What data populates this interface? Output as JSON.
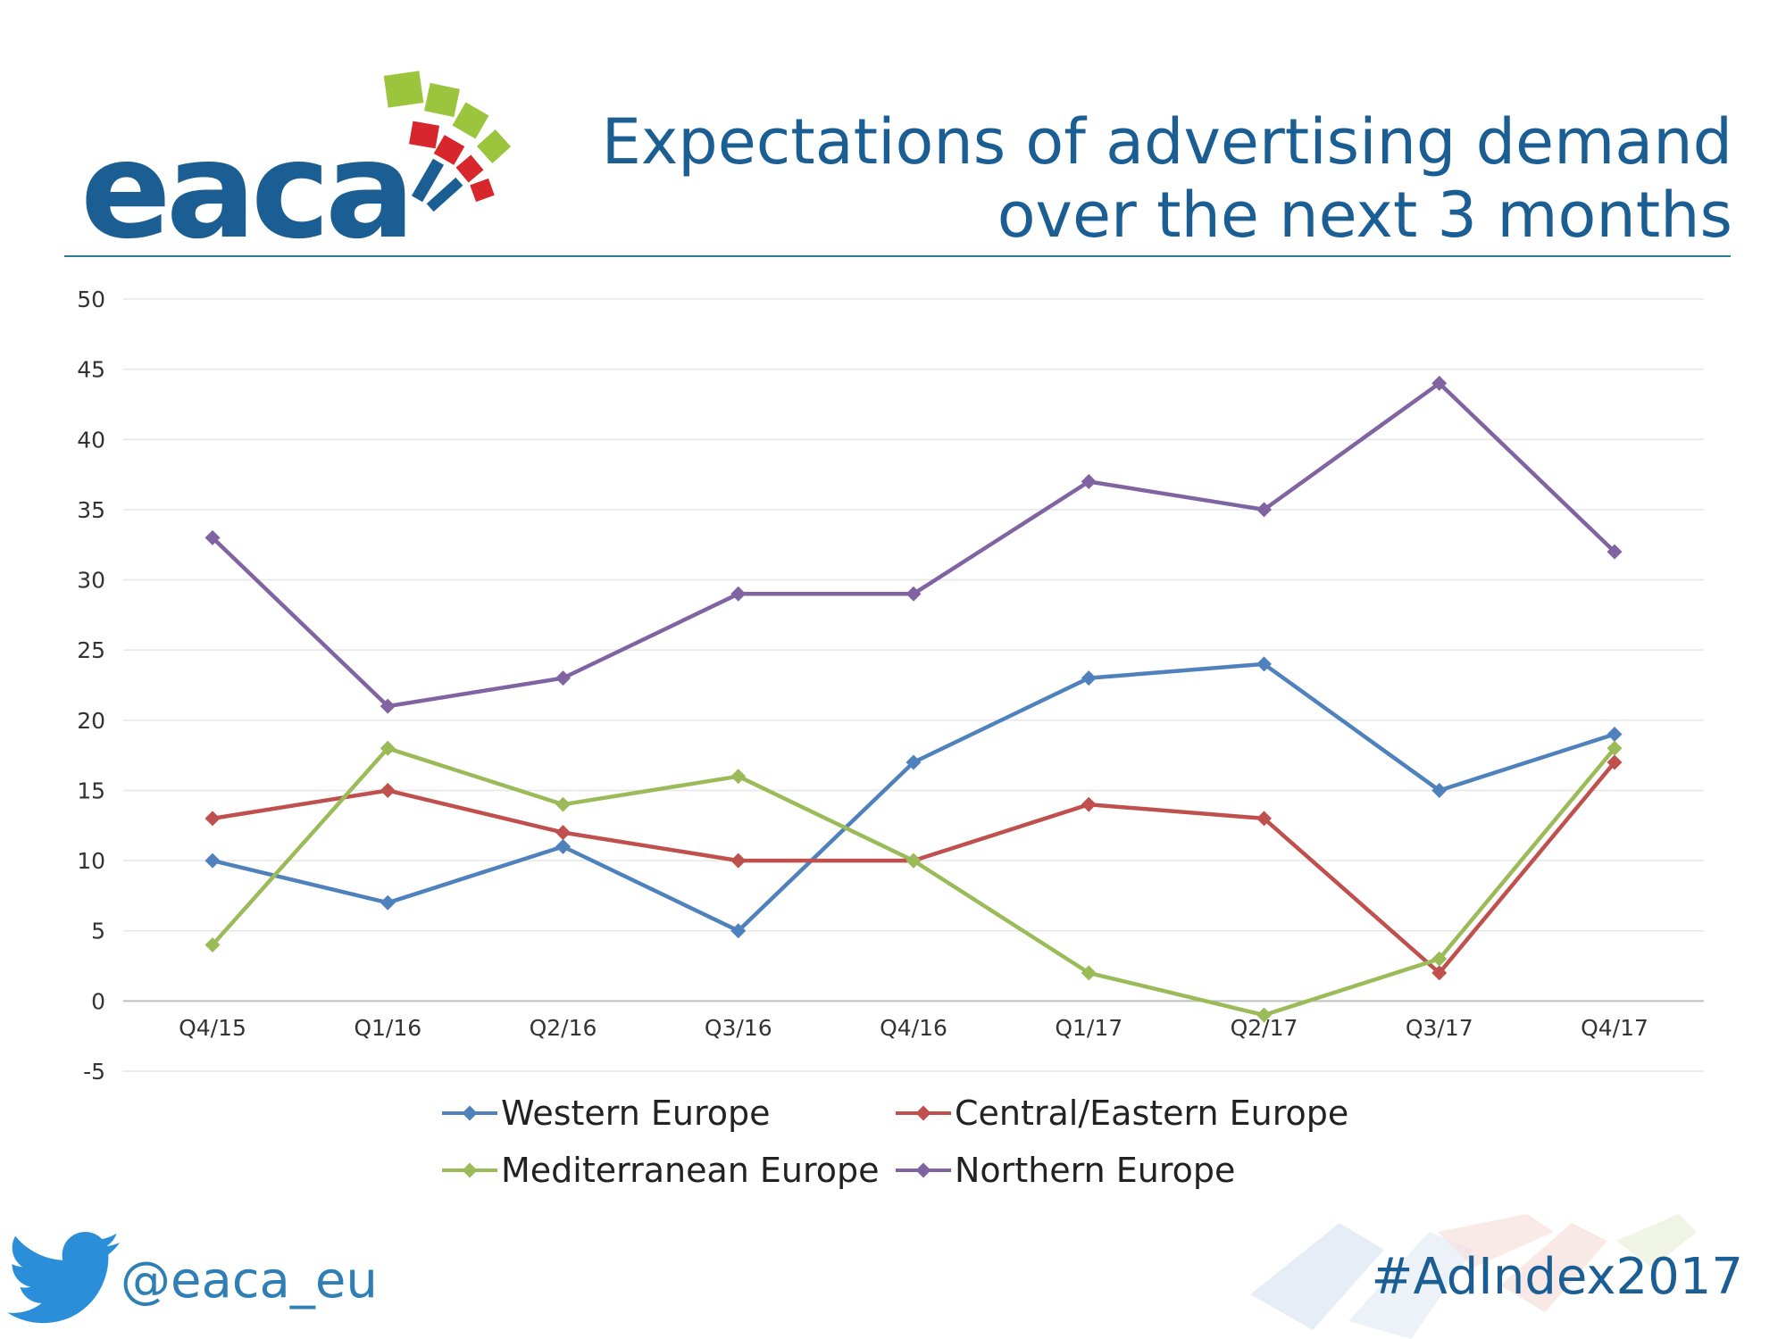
{
  "header": {
    "logo_text": "eaca",
    "title": "Expectations of advertising demand over the next 3 months"
  },
  "footer": {
    "handle": "@eaca_eu",
    "hashtag": "#AdIndex2017"
  },
  "colors": {
    "title": "#1b5e93",
    "western": "#4f81bd",
    "central_eastern": "#c0504d",
    "mediterranean": "#9bbb59",
    "northern": "#8064a2",
    "grid": "#e6e6e6"
  },
  "chart_data": {
    "type": "line",
    "title": "Expectations of advertising demand over the next 3 months",
    "xlabel": "",
    "ylabel": "",
    "categories": [
      "Q4/15",
      "Q1/16",
      "Q2/16",
      "Q3/16",
      "Q4/16",
      "Q1/17",
      "Q2/17",
      "Q3/17",
      "Q4/17"
    ],
    "ylim": [
      -5,
      50
    ],
    "yticks": [
      "50",
      "45",
      "40",
      "35",
      "30",
      "25",
      "20",
      "15",
      "10",
      "5",
      "0",
      "-5"
    ],
    "grid": true,
    "legend_position": "bottom",
    "series": [
      {
        "name": "Western Europe",
        "color": "#4f81bd",
        "values": [
          10,
          7,
          11,
          5,
          17,
          23,
          24,
          15,
          19
        ]
      },
      {
        "name": "Central/Eastern Europe",
        "color": "#c0504d",
        "values": [
          13,
          15,
          12,
          10,
          10,
          14,
          13,
          2,
          17
        ]
      },
      {
        "name": "Mediterranean Europe",
        "color": "#9bbb59",
        "values": [
          4,
          18,
          14,
          16,
          10,
          2,
          -1,
          3,
          18
        ]
      },
      {
        "name": "Northern Europe",
        "color": "#8064a2",
        "values": [
          33,
          21,
          23,
          29,
          29,
          37,
          35,
          44,
          32
        ]
      }
    ]
  }
}
